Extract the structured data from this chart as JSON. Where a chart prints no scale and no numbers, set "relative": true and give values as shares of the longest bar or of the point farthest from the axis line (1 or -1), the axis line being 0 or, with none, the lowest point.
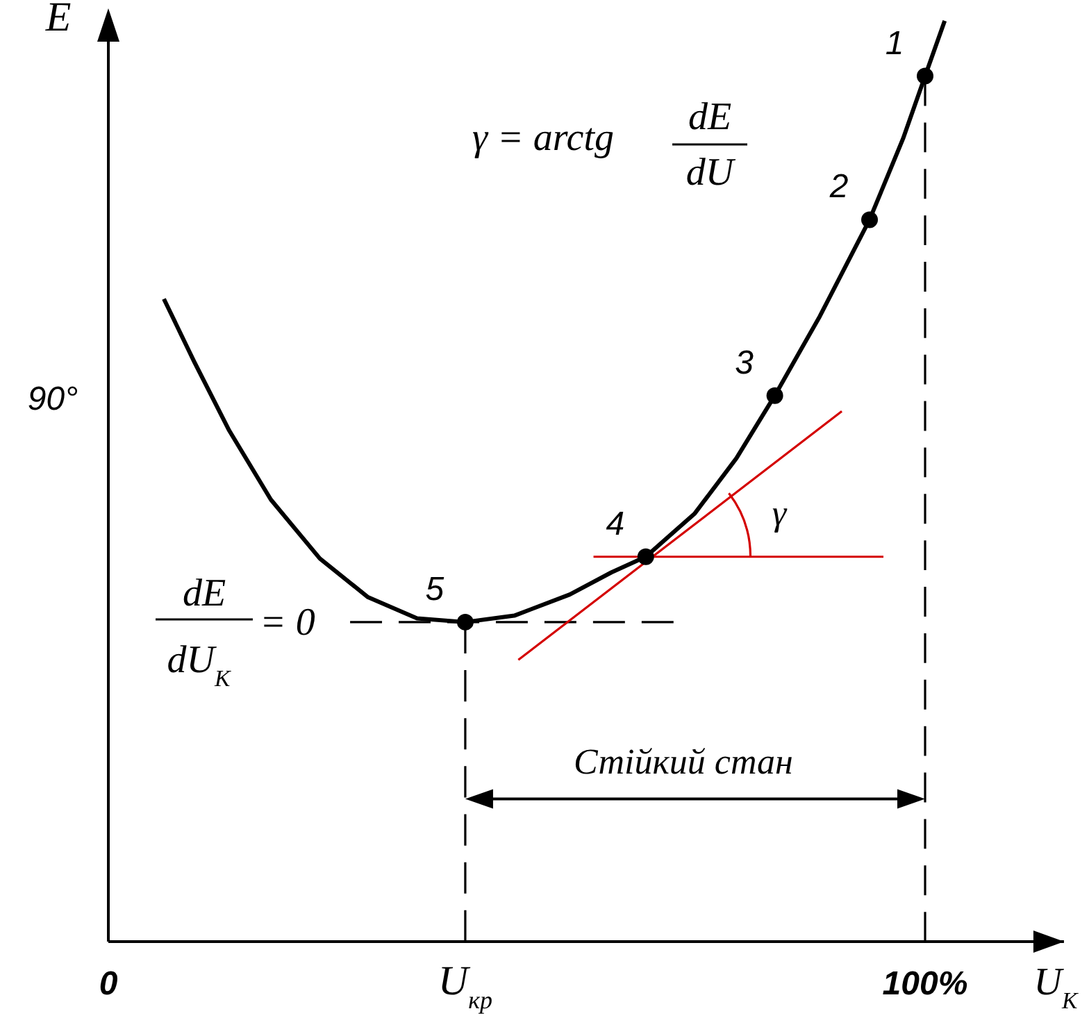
{
  "chart_data": {
    "type": "line",
    "relative": true,
    "xlabel": "U$_{К}$",
    "ylabel": "E",
    "xlim": [
      0,
      117
    ],
    "xticks": [
      0,
      {
        "value": 43.7,
        "label": "U$_{кр}$"
      },
      {
        "value": 100,
        "label": "100%"
      }
    ],
    "series": [
      {
        "type": "line",
        "color": "#000000",
        "x": [
          6.8,
          10.5,
          14.8,
          19.9,
          25.9,
          31.8,
          37.8,
          43.7,
          49.7,
          56.5,
          61.6,
          65.8,
          71.8,
          76.9,
          81.6,
          87.1,
          93.2,
          97.3,
          100,
          102.4
        ],
        "values": [
          0.698,
          0.63,
          0.555,
          0.48,
          0.416,
          0.374,
          0.351,
          0.347,
          0.354,
          0.377,
          0.401,
          0.418,
          0.465,
          0.525,
          0.593,
          0.679,
          0.784,
          0.872,
          0.94,
          1.0
        ]
      },
      {
        "type": "line",
        "color": "#000000",
        "line_style": "dashed",
        "x": [
          29.6,
          69.2
        ],
        "values": [
          0.347,
          0.347
        ]
      },
      {
        "type": "line",
        "color": "#000000",
        "line_style": "dashed",
        "x": [
          43.7,
          43.7
        ],
        "values": [
          0,
          0.347
        ]
      },
      {
        "type": "line",
        "color": "#000000",
        "line_style": "dashed",
        "x": [
          100,
          100
        ],
        "values": [
          0,
          0.94
        ]
      },
      {
        "type": "line",
        "color": "#d40000",
        "x": [
          50.2,
          89.8
        ],
        "values": [
          0.306,
          0.576
        ]
      },
      {
        "type": "line",
        "color": "#d40000",
        "x": [
          59.4,
          94.9
        ],
        "values": [
          0.418,
          0.418
        ]
      },
      {
        "type": "scatter",
        "color": "#000000",
        "marker": "circle",
        "x": [
          100,
          93.2,
          81.6,
          65.8,
          43.7
        ],
        "values": [
          0.94,
          0.784,
          0.593,
          0.418,
          0.347
        ]
      }
    ],
    "annotations": [
      "γ = arctg",
      "dE",
      "dU",
      "dE",
      "dU$_{К}$",
      "= 0",
      "γ",
      "Стійкий стан",
      "90°",
      {
        "text": "1",
        "x": 100,
        "y": 0.94
      },
      {
        "text": "2",
        "x": 93.2,
        "y": 0.784
      },
      {
        "text": "3",
        "x": 81.6,
        "y": 0.593
      },
      {
        "text": "4",
        "x": 65.8,
        "y": 0.418
      },
      {
        "text": "5",
        "x": 43.7,
        "y": 0.347
      }
    ]
  }
}
